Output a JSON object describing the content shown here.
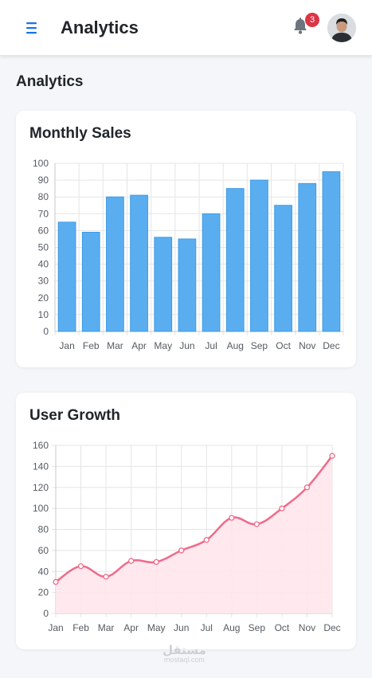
{
  "header": {
    "title": "Analytics",
    "notification_count": "3",
    "icons": {
      "menu": "hamburger-menu-icon",
      "notifications": "bell-icon",
      "avatar": "user-avatar"
    },
    "accent_color": "#1a73e8"
  },
  "page": {
    "title": "Analytics"
  },
  "sales_card": {
    "title": "Monthly Sales"
  },
  "growth_card": {
    "title": "User Growth"
  },
  "watermark": {
    "main": "مستقل",
    "sub": "mostaql.com"
  },
  "chart_data": [
    {
      "type": "bar",
      "categories": [
        "Jan",
        "Feb",
        "Mar",
        "Apr",
        "May",
        "Jun",
        "Jul",
        "Aug",
        "Sep",
        "Oct",
        "Nov",
        "Dec"
      ],
      "values": [
        65,
        59,
        80,
        81,
        56,
        55,
        70,
        85,
        90,
        75,
        88,
        95
      ],
      "title": "Monthly Sales",
      "ylim": [
        0,
        100
      ],
      "ytick_step": 10,
      "grid": true,
      "colors": {
        "fill": "#5aaef0",
        "stroke": "#3d9ae6",
        "grid": "#e5e5e5",
        "axis": "#c8c8c8"
      }
    },
    {
      "type": "area",
      "categories": [
        "Jan",
        "Feb",
        "Mar",
        "Apr",
        "May",
        "Jun",
        "Jul",
        "Aug",
        "Sep",
        "Oct",
        "Nov",
        "Dec"
      ],
      "values": [
        30,
        45,
        35,
        50,
        49,
        60,
        70,
        91,
        85,
        100,
        120,
        150
      ],
      "title": "User Growth",
      "ylim": [
        0,
        160
      ],
      "ytick_step": 20,
      "grid": true,
      "colors": {
        "line": "#f06a8a",
        "fill": "#ffe6ec",
        "point_fill": "#ffffff",
        "grid": "#e5e5e5",
        "axis": "#c8c8c8"
      }
    }
  ]
}
